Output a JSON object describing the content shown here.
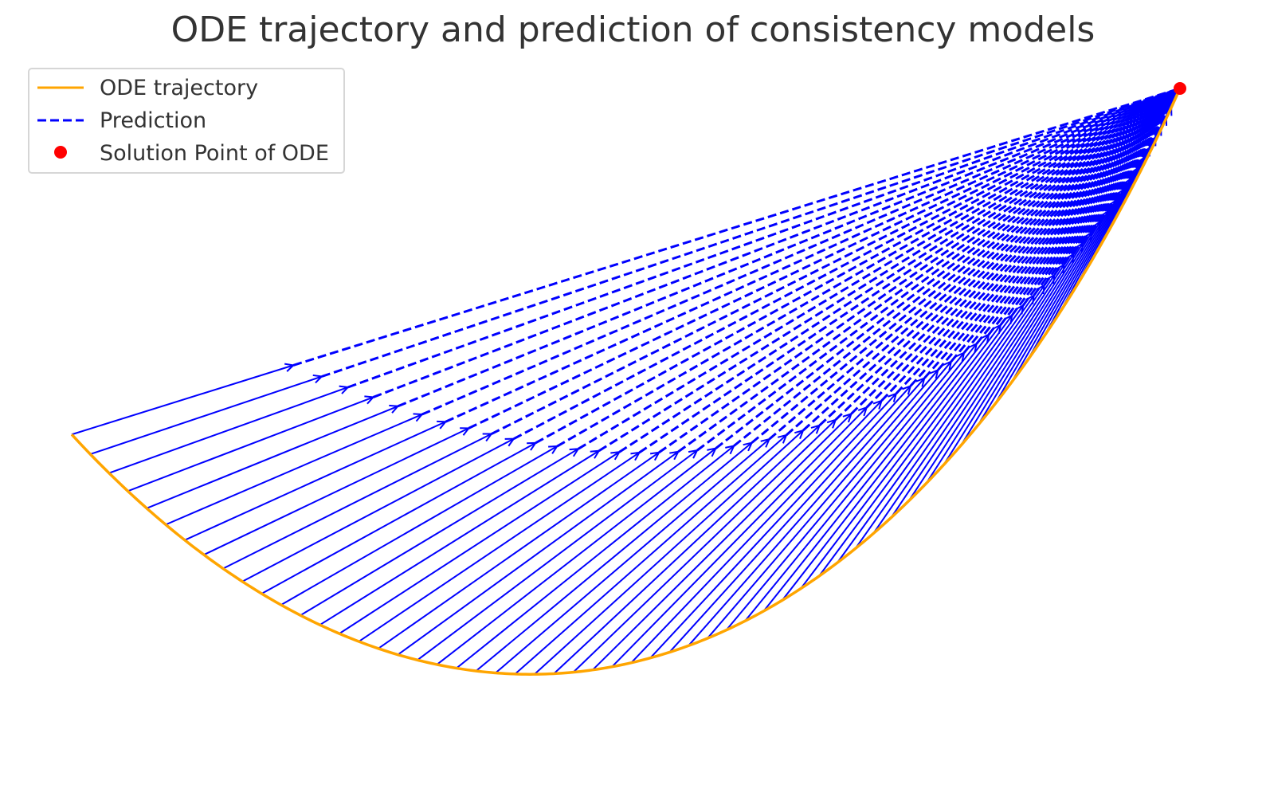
{
  "chart_data": {
    "type": "line",
    "title": "ODE trajectory and prediction of consistency models",
    "xlabel": "",
    "ylabel": "",
    "grid": false,
    "axes_visible": false,
    "legend_placement": "top-left",
    "x_range": [
      0,
      1
    ],
    "y_range": [
      -0.05,
      1.05
    ],
    "series": [
      {
        "name": "ODE trajectory",
        "style": "solid",
        "color": "#FFA500",
        "curve": "cubic Bezier from start point to solution point",
        "start": [
          0.0,
          0.45
        ],
        "control1": [
          0.34,
          -0.2
        ],
        "control2": [
          0.74,
          -0.02
        ],
        "end": [
          1.0,
          1.0
        ]
      },
      {
        "name": "Prediction",
        "style": "dashed arrows",
        "color": "#0000FF",
        "arrow_count": 60,
        "solid_arrow_part": "from trajectory point toward prediction",
        "dashed_part": "from prediction to solution point"
      },
      {
        "name": "Solution Point of ODE",
        "style": "marker",
        "color": "#FF0000",
        "x": 1.0,
        "y": 1.0
      }
    ]
  },
  "legend": {
    "items": [
      {
        "label": "ODE trajectory",
        "color": "#FFA500",
        "kind": "solid-line"
      },
      {
        "label": "Prediction",
        "color": "#0000FF",
        "kind": "dashed-line"
      },
      {
        "label": "Solution Point of ODE",
        "color": "#FF0000",
        "kind": "dot"
      }
    ]
  }
}
